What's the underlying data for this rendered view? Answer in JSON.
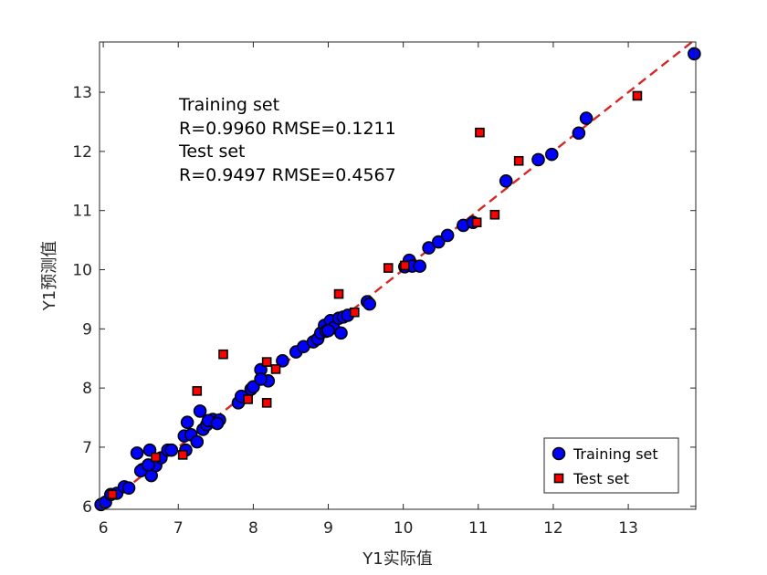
{
  "chart_data": {
    "type": "scatter",
    "xlabel": "Y1实际值",
    "ylabel": "Y1预测值",
    "xlim": [
      5.95,
      13.9
    ],
    "ylim": [
      5.95,
      13.85
    ],
    "xticks": [
      6,
      7,
      8,
      9,
      10,
      11,
      12,
      13
    ],
    "yticks": [
      6,
      7,
      8,
      9,
      10,
      11,
      12,
      13
    ],
    "grid": false,
    "legend_position": "bottom-right",
    "colors": {
      "training_fill": "#0000ff",
      "test_fill": "#ff0000",
      "marker_edge": "#000000",
      "fit_line": "#d62728",
      "axis": "#262626"
    },
    "annotation_lines": [
      "Training set",
      "R=0.9960 RMSE=0.1211",
      "Test set",
      "R=0.9497 RMSE=0.4567"
    ],
    "fit_line": {
      "name": "y = x",
      "x": [
        5.95,
        13.9
      ],
      "y": [
        5.95,
        13.9
      ]
    },
    "series": [
      {
        "name": "Training set",
        "marker": "circle",
        "x": [
          5.97,
          6.03,
          6.1,
          6.18,
          6.28,
          6.34,
          6.45,
          6.52,
          6.62,
          6.64,
          6.7,
          6.77,
          6.86,
          6.91,
          7.08,
          7.1,
          7.12,
          7.17,
          7.25,
          7.33,
          7.38,
          7.46,
          7.55,
          7.8,
          7.84,
          7.97,
          8.1,
          8.2,
          8.39,
          8.57,
          8.67,
          8.8,
          8.86,
          8.9,
          8.95,
          8.97,
          9.03,
          9.07,
          9.14,
          9.17,
          9.2,
          9.26,
          9.52,
          9.55,
          10.02,
          10.08,
          10.12,
          10.22,
          10.34,
          10.47,
          10.59,
          10.8,
          10.93,
          11.37,
          11.8,
          11.98,
          12.34,
          12.44,
          13.88,
          6.5,
          6.6,
          7.29,
          7.4,
          7.52,
          8.0,
          8.1,
          9.0
        ],
        "y": [
          6.03,
          6.07,
          6.2,
          6.22,
          6.33,
          6.31,
          6.9,
          6.62,
          6.95,
          6.52,
          6.69,
          6.82,
          6.95,
          6.95,
          7.19,
          6.95,
          7.42,
          7.21,
          7.09,
          7.3,
          7.38,
          7.47,
          7.46,
          7.75,
          7.86,
          7.98,
          8.31,
          8.12,
          8.46,
          8.61,
          8.7,
          8.78,
          8.83,
          8.93,
          9.06,
          8.96,
          9.14,
          9.02,
          9.18,
          8.93,
          9.2,
          9.23,
          9.46,
          9.42,
          10.05,
          10.16,
          10.06,
          10.06,
          10.37,
          10.47,
          10.58,
          10.75,
          10.8,
          11.5,
          11.86,
          11.95,
          12.31,
          12.56,
          13.65,
          6.6,
          6.7,
          7.61,
          7.45,
          7.4,
          8.02,
          8.15,
          8.97
        ]
      },
      {
        "name": "Test set",
        "marker": "square",
        "x": [
          6.12,
          6.7,
          7.06,
          7.25,
          7.6,
          7.93,
          8.18,
          8.18,
          8.3,
          9.14,
          9.35,
          9.8,
          10.02,
          10.98,
          11.02,
          11.22,
          11.54,
          13.12
        ],
        "y": [
          6.2,
          6.83,
          6.87,
          7.95,
          8.57,
          7.81,
          7.75,
          8.44,
          8.32,
          9.59,
          9.28,
          10.03,
          10.07,
          10.8,
          12.32,
          10.93,
          11.84,
          12.94
        ]
      }
    ]
  }
}
